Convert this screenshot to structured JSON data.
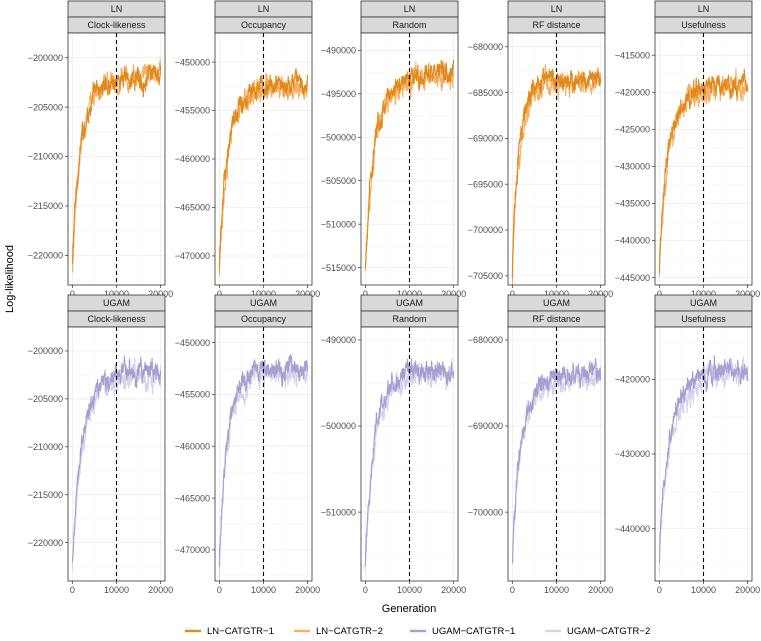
{
  "chart_data": {
    "type": "line",
    "xlabel": "Generation",
    "ylabel": "Log-likelihood",
    "xlim": [
      0,
      20000
    ],
    "x_ticks": [
      0,
      10000,
      20000
    ],
    "vline_x": 10000,
    "grid": true,
    "legend_position": "bottom",
    "legend": [
      {
        "name": "LN−CATGTR−1",
        "color": "#e08a1e"
      },
      {
        "name": "LN−CATGTR−2",
        "color": "#f7b060"
      },
      {
        "name": "UGAM−CATGTR−1",
        "color": "#a89ed2"
      },
      {
        "name": "UGAM−CATGTR−2",
        "color": "#d6d2ea"
      }
    ],
    "panels": [
      {
        "model": "LN",
        "facet": "Clock-likeness",
        "ylim": [
          -223000,
          -197500
        ],
        "yticks": [
          -200000,
          -205000,
          -210000,
          -215000,
          -220000
        ],
        "series": [
          {
            "start": -221500,
            "k1": 7,
            "plateau": -202000,
            "w1": 2200,
            "k2": 1.9,
            "kx": 0.0
          },
          {
            "start": -222000,
            "k1": 8,
            "plateau": -201800,
            "w1": 2300,
            "k2": 1.8,
            "kx": 0.0
          }
        ]
      },
      {
        "model": "LN",
        "facet": "Occupancy",
        "ylim": [
          -473000,
          -447000
        ],
        "yticks": [
          -450000,
          -455000,
          -460000,
          -465000,
          -470000
        ],
        "series": [
          {
            "start": -471500,
            "k1": 7,
            "plateau": -452200,
            "w1": 2200,
            "k2": 1.7,
            "kx": 0.0
          },
          {
            "start": -472000,
            "k1": 8,
            "plateau": -452500,
            "w1": 2300,
            "k2": 1.6,
            "kx": 0.0
          }
        ]
      },
      {
        "model": "LN",
        "facet": "Random",
        "ylim": [
          -517000,
          -488000
        ],
        "yticks": [
          -490000,
          -495000,
          -500000,
          -505000,
          -510000,
          -515000
        ],
        "series": [
          {
            "start": -515500,
            "k1": 7,
            "plateau": -492500,
            "w1": 2500,
            "k2": 1.8,
            "kx": 0.0
          },
          {
            "start": -516000,
            "k1": 8,
            "plateau": -493000,
            "w1": 2600,
            "k2": 1.7,
            "kx": 0.0
          }
        ]
      },
      {
        "model": "LN",
        "facet": "RF distance",
        "ylim": [
          -706000,
          -678500
        ],
        "yticks": [
          -680000,
          -685000,
          -690000,
          -695000,
          -700000,
          -705000
        ],
        "series": [
          {
            "start": -705000,
            "k1": 8,
            "plateau": -683500,
            "w1": 1700,
            "k2": 1.8,
            "kx": 0.0
          },
          {
            "start": -705500,
            "k1": 9,
            "plateau": -684000,
            "w1": 1800,
            "k2": 1.7,
            "kx": 0.0
          }
        ]
      },
      {
        "model": "LN",
        "facet": "Usefulness",
        "ylim": [
          -446000,
          -412000
        ],
        "yticks": [
          -415000,
          -420000,
          -425000,
          -430000,
          -435000,
          -440000,
          -445000
        ],
        "series": [
          {
            "start": -444500,
            "k1": 7,
            "plateau": -419000,
            "w1": 2300,
            "k2": 2.0,
            "kx": 0.0
          },
          {
            "start": -445000,
            "k1": 8,
            "plateau": -419500,
            "w1": 2400,
            "k2": 1.9,
            "kx": 0.0
          }
        ]
      },
      {
        "model": "UGAM",
        "facet": "Clock-likeness",
        "ylim": [
          -224000,
          -197500
        ],
        "yticks": [
          -200000,
          -205000,
          -210000,
          -215000,
          -220000
        ],
        "series": [
          {
            "start": -222500,
            "k1": 7,
            "plateau": -202000,
            "w1": 2600,
            "k2": 1.9,
            "kx": 0.0
          },
          {
            "start": -223500,
            "k1": 8,
            "plateau": -202500,
            "w1": 2700,
            "k2": 1.8,
            "kx": 0.0
          }
        ]
      },
      {
        "model": "UGAM",
        "facet": "Occupancy",
        "ylim": [
          -473000,
          -448500
        ],
        "yticks": [
          -450000,
          -455000,
          -460000,
          -465000,
          -470000
        ],
        "series": [
          {
            "start": -471500,
            "k1": 7,
            "plateau": -452500,
            "w1": 2000,
            "k2": 1.8,
            "kx": 0.0
          },
          {
            "start": -472500,
            "k1": 8,
            "plateau": -453000,
            "w1": 2100,
            "k2": 1.7,
            "kx": 0.0
          }
        ]
      },
      {
        "model": "UGAM",
        "facet": "Random",
        "ylim": [
          -518000,
          -488500
        ],
        "yticks": [
          -490000,
          -500000,
          -510000
        ],
        "series": [
          {
            "start": -516500,
            "k1": 7,
            "plateau": -493500,
            "w1": 2300,
            "k2": 1.9,
            "kx": 0.0
          },
          {
            "start": -517000,
            "k1": 8,
            "plateau": -494000,
            "w1": 2400,
            "k2": 1.8,
            "kx": 0.0
          }
        ]
      },
      {
        "model": "UGAM",
        "facet": "RF distance",
        "ylim": [
          -708000,
          -678500
        ],
        "yticks": [
          -680000,
          -690000,
          -700000
        ],
        "series": [
          {
            "start": -706500,
            "k1": 7,
            "plateau": -684000,
            "w1": 2200,
            "k2": 1.9,
            "kx": 0.0
          },
          {
            "start": -707000,
            "k1": 8,
            "plateau": -684500,
            "w1": 2300,
            "k2": 1.8,
            "kx": 0.0
          }
        ]
      },
      {
        "model": "UGAM",
        "facet": "Usefulness",
        "ylim": [
          -447000,
          -413000
        ],
        "yticks": [
          -420000,
          -430000,
          -440000
        ],
        "series": [
          {
            "start": -444500,
            "k1": 7,
            "plateau": -418500,
            "w1": 3000,
            "k2": 1.6,
            "kx": 0.0
          },
          {
            "start": -445500,
            "k1": 8,
            "plateau": -419000,
            "w1": 3200,
            "k2": 1.5,
            "kx": 0.0
          }
        ]
      }
    ]
  }
}
